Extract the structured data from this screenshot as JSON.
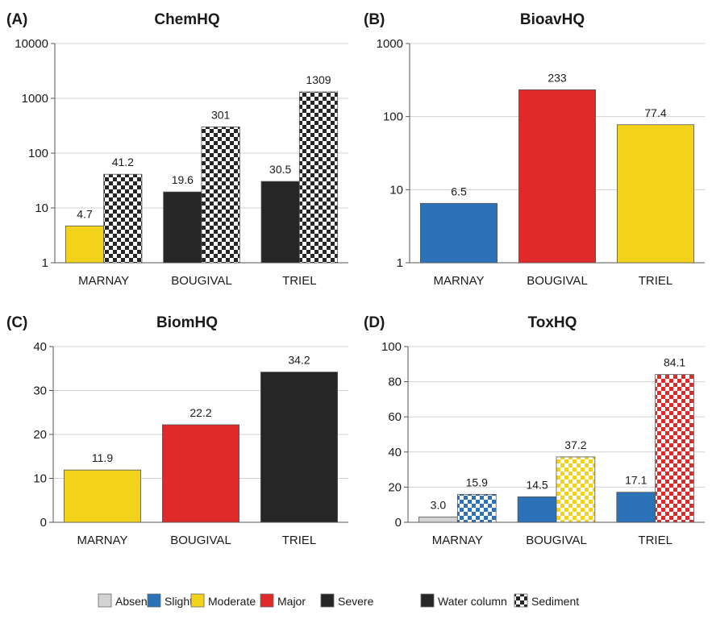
{
  "legend": {
    "items": [
      {
        "label": "Absent",
        "color": "#d3d3d3",
        "pattern": "solid"
      },
      {
        "label": "Slight",
        "color": "#2b72b8",
        "pattern": "solid"
      },
      {
        "label": "Moderate",
        "color": "#f3d21c",
        "pattern": "solid"
      },
      {
        "label": "Major",
        "color": "#df2a2a",
        "pattern": "solid"
      },
      {
        "label": "Severe",
        "color": "#262626",
        "pattern": "solid"
      },
      {
        "label": "Water column",
        "color": "#262626",
        "pattern": "solid"
      },
      {
        "label": "Sediment",
        "color": "#262626",
        "pattern": "checker"
      }
    ]
  },
  "chart_data": [
    {
      "panel": "(A)",
      "title": "ChemHQ",
      "type": "bar",
      "scale": "log",
      "ylim": [
        1,
        10000
      ],
      "yticks": [
        "1",
        "10",
        "100",
        "1000",
        "10000"
      ],
      "categories": [
        "MARNAY",
        "BOUGIVAL",
        "TRIEL"
      ],
      "grid": true,
      "bars": [
        {
          "category": "MARNAY",
          "value": 4.7,
          "label": "4.7",
          "color": "#f3d21c",
          "pattern": "solid"
        },
        {
          "category": "MARNAY",
          "value": 41.2,
          "label": "41.2",
          "color": "#262626",
          "pattern": "checker"
        },
        {
          "category": "BOUGIVAL",
          "value": 19.6,
          "label": "19.6",
          "color": "#262626",
          "pattern": "solid"
        },
        {
          "category": "BOUGIVAL",
          "value": 301,
          "label": "301",
          "color": "#262626",
          "pattern": "checker"
        },
        {
          "category": "TRIEL",
          "value": 30.5,
          "label": "30.5",
          "color": "#262626",
          "pattern": "solid"
        },
        {
          "category": "TRIEL",
          "value": 1309,
          "label": "1309",
          "color": "#262626",
          "pattern": "checker"
        }
      ]
    },
    {
      "panel": "(B)",
      "title": "BioavHQ",
      "type": "bar",
      "scale": "log",
      "ylim": [
        1,
        1000
      ],
      "yticks": [
        "1",
        "10",
        "100",
        "1000"
      ],
      "categories": [
        "MARNAY",
        "BOUGIVAL",
        "TRIEL"
      ],
      "grid": true,
      "bars": [
        {
          "category": "MARNAY",
          "value": 6.5,
          "label": "6.5",
          "color": "#2b72b8",
          "pattern": "solid"
        },
        {
          "category": "BOUGIVAL",
          "value": 233,
          "label": "233",
          "color": "#df2a2a",
          "pattern": "solid"
        },
        {
          "category": "TRIEL",
          "value": 77.4,
          "label": "77.4",
          "color": "#f3d21c",
          "pattern": "solid"
        }
      ]
    },
    {
      "panel": "(C)",
      "title": "BiomHQ",
      "type": "bar",
      "scale": "linear",
      "ylim": [
        0,
        40
      ],
      "yticks": [
        "0",
        "10",
        "20",
        "30",
        "40"
      ],
      "categories": [
        "MARNAY",
        "BOUGIVAL",
        "TRIEL"
      ],
      "grid": true,
      "bars": [
        {
          "category": "MARNAY",
          "value": 11.9,
          "label": "11.9",
          "color": "#f3d21c",
          "pattern": "solid"
        },
        {
          "category": "BOUGIVAL",
          "value": 22.2,
          "label": "22.2",
          "color": "#df2a2a",
          "pattern": "solid"
        },
        {
          "category": "TRIEL",
          "value": 34.2,
          "label": "34.2",
          "color": "#262626",
          "pattern": "solid"
        }
      ]
    },
    {
      "panel": "(D)",
      "title": "ToxHQ",
      "type": "bar",
      "scale": "linear",
      "ylim": [
        0,
        100
      ],
      "yticks": [
        "0",
        "20",
        "40",
        "60",
        "80",
        "100"
      ],
      "categories": [
        "MARNAY",
        "BOUGIVAL",
        "TRIEL"
      ],
      "grid": true,
      "bars": [
        {
          "category": "MARNAY",
          "value": 3.0,
          "label": "3.0",
          "color": "#d3d3d3",
          "pattern": "solid"
        },
        {
          "category": "MARNAY",
          "value": 15.9,
          "label": "15.9",
          "color": "#2b72b8",
          "pattern": "checker"
        },
        {
          "category": "BOUGIVAL",
          "value": 14.5,
          "label": "14.5",
          "color": "#2b72b8",
          "pattern": "solid"
        },
        {
          "category": "BOUGIVAL",
          "value": 37.2,
          "label": "37.2",
          "color": "#f3d21c",
          "pattern": "checker"
        },
        {
          "category": "TRIEL",
          "value": 17.1,
          "label": "17.1",
          "color": "#2b72b8",
          "pattern": "solid"
        },
        {
          "category": "TRIEL",
          "value": 84.1,
          "label": "84.1",
          "color": "#df2a2a",
          "pattern": "checker"
        }
      ]
    }
  ]
}
